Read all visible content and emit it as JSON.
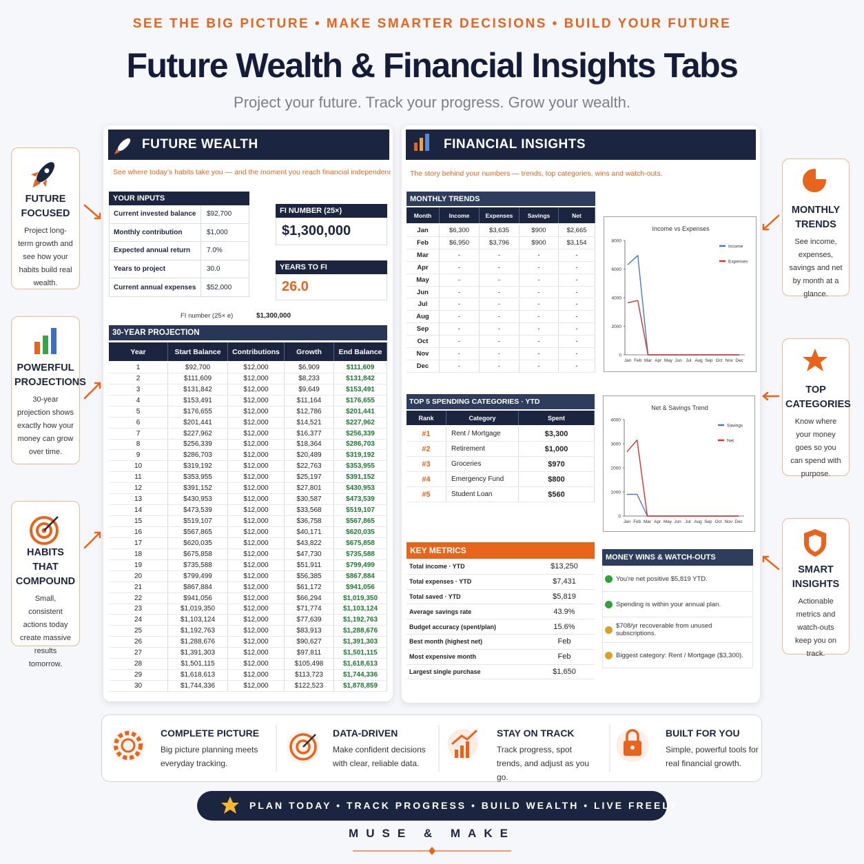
{
  "header": {
    "tagline": "SEE THE BIG PICTURE • MAKE SMARTER DECISIONS • BUILD YOUR FUTURE",
    "title": "Future Wealth & Financial Insights Tabs",
    "subtitle": "Project your future. Track your progress. Grow your wealth."
  },
  "callouts": [
    {
      "title": "FUTURE FOCUSED",
      "text": "Project long-term growth and see how your habits build real wealth."
    },
    {
      "title": "POWERFUL PROJECTIONS",
      "text": "30-year projection shows exactly how your money can grow over time."
    },
    {
      "title": "HABITS THAT COMPOUND",
      "text": "Small, consistent actions today create massive results tomorrow."
    },
    {
      "title": "MONTHLY TRENDS",
      "text": "See income, expenses, savings and net by month at a glance."
    },
    {
      "title": "TOP CATEGORIES",
      "text": "Know where your money goes so you can spend with purpose."
    },
    {
      "title": "SMART INSIGHTS",
      "text": "Actionable metrics and watch-outs keep you on track."
    }
  ],
  "future_wealth": {
    "heading": "FUTURE WEALTH",
    "tagline": "See where today’s habits take you — and the moment you reach financial independence.",
    "inputs": {
      "title": "YOUR INPUTS",
      "rows": [
        [
          "Current invested balance",
          "$92,700"
        ],
        [
          "Monthly contribution",
          "$1,000"
        ],
        [
          "Expected annual return",
          "7.0%"
        ],
        [
          "Years to project",
          "30.0"
        ],
        [
          "Current annual expenses",
          "$52,000"
        ]
      ]
    },
    "fi_number": {
      "label": "FI NUMBER (25×)",
      "value": "$1,300,000"
    },
    "years_to_fi": {
      "label": "YEARS TO FI",
      "value": "26.0"
    },
    "fi_note": {
      "label": "FI number (25× e)",
      "value": "$1,300,000"
    },
    "projection": {
      "title": "30-YEAR PROJECTION",
      "columns": [
        "Year",
        "Start Balance",
        "Contributions",
        "Growth",
        "End Balance"
      ],
      "rows": [
        [
          "1",
          "$92,700",
          "$12,000",
          "$6,909",
          "$111,609"
        ],
        [
          "2",
          "$111,609",
          "$12,000",
          "$8,233",
          "$131,842"
        ],
        [
          "3",
          "$131,842",
          "$12,000",
          "$9,649",
          "$153,491"
        ],
        [
          "4",
          "$153,491",
          "$12,000",
          "$11,164",
          "$176,655"
        ],
        [
          "5",
          "$176,655",
          "$12,000",
          "$12,786",
          "$201,441"
        ],
        [
          "6",
          "$201,441",
          "$12,000",
          "$14,521",
          "$227,962"
        ],
        [
          "7",
          "$227,962",
          "$12,000",
          "$16,377",
          "$256,339"
        ],
        [
          "8",
          "$256,339",
          "$12,000",
          "$18,364",
          "$286,703"
        ],
        [
          "9",
          "$286,703",
          "$12,000",
          "$20,489",
          "$319,192"
        ],
        [
          "10",
          "$319,192",
          "$12,000",
          "$22,763",
          "$353,955"
        ],
        [
          "11",
          "$353,955",
          "$12,000",
          "$25,197",
          "$391,152"
        ],
        [
          "12",
          "$391,152",
          "$12,000",
          "$27,801",
          "$430,953"
        ],
        [
          "13",
          "$430,953",
          "$12,000",
          "$30,587",
          "$473,539"
        ],
        [
          "14",
          "$473,539",
          "$12,000",
          "$33,568",
          "$519,107"
        ],
        [
          "15",
          "$519,107",
          "$12,000",
          "$36,758",
          "$567,865"
        ],
        [
          "16",
          "$567,865",
          "$12,000",
          "$40,171",
          "$620,035"
        ],
        [
          "17",
          "$620,035",
          "$12,000",
          "$43,822",
          "$675,858"
        ],
        [
          "18",
          "$675,858",
          "$12,000",
          "$47,730",
          "$735,588"
        ],
        [
          "19",
          "$735,588",
          "$12,000",
          "$51,911",
          "$799,499"
        ],
        [
          "20",
          "$799,499",
          "$12,000",
          "$56,385",
          "$867,884"
        ],
        [
          "21",
          "$867,884",
          "$12,000",
          "$61,172",
          "$941,056"
        ],
        [
          "22",
          "$941,056",
          "$12,000",
          "$66,294",
          "$1,019,350"
        ],
        [
          "23",
          "$1,019,350",
          "$12,000",
          "$71,774",
          "$1,103,124"
        ],
        [
          "24",
          "$1,103,124",
          "$12,000",
          "$77,639",
          "$1,192,763"
        ],
        [
          "25",
          "$1,192,763",
          "$12,000",
          "$83,913",
          "$1,288,676"
        ],
        [
          "26",
          "$1,288,676",
          "$12,000",
          "$90,627",
          "$1,391,303"
        ],
        [
          "27",
          "$1,391,303",
          "$12,000",
          "$97,811",
          "$1,501,115"
        ],
        [
          "28",
          "$1,501,115",
          "$12,000",
          "$105,498",
          "$1,618,613"
        ],
        [
          "29",
          "$1,618,613",
          "$12,000",
          "$113,723",
          "$1,744,336"
        ],
        [
          "30",
          "$1,744,336",
          "$12,000",
          "$122,523",
          "$1,878,859"
        ]
      ]
    }
  },
  "financial_insights": {
    "heading": "FINANCIAL INSIGHTS",
    "tagline": "The story behind your numbers — trends, top categories, wins and watch-outs.",
    "monthly_trends": {
      "title": "MONTHLY TRENDS",
      "columns": [
        "Month",
        "Income",
        "Expenses",
        "Savings",
        "Net"
      ],
      "rows": [
        [
          "Jan",
          "$6,300",
          "$3,635",
          "$900",
          "$2,665"
        ],
        [
          "Feb",
          "$6,950",
          "$3,796",
          "$900",
          "$3,154"
        ],
        [
          "Mar",
          "-",
          "-",
          "-",
          "-"
        ],
        [
          "Apr",
          "-",
          "-",
          "-",
          "-"
        ],
        [
          "May",
          "-",
          "-",
          "-",
          "-"
        ],
        [
          "Jun",
          "-",
          "-",
          "-",
          "-"
        ],
        [
          "Jul",
          "-",
          "-",
          "-",
          "-"
        ],
        [
          "Aug",
          "-",
          "-",
          "-",
          "-"
        ],
        [
          "Sep",
          "-",
          "-",
          "-",
          "-"
        ],
        [
          "Oct",
          "-",
          "-",
          "-",
          "-"
        ],
        [
          "Nov",
          "-",
          "-",
          "-",
          "-"
        ],
        [
          "Dec",
          "-",
          "-",
          "-",
          "-"
        ]
      ]
    },
    "top_categories": {
      "title": "TOP 5 SPENDING CATEGORIES · YTD",
      "columns": [
        "Rank",
        "Category",
        "Spent"
      ],
      "rows": [
        [
          "#1",
          "Rent / Mortgage",
          "$3,300"
        ],
        [
          "#2",
          "Retirement",
          "$1,000"
        ],
        [
          "#3",
          "Groceries",
          "$970"
        ],
        [
          "#4",
          "Emergency Fund",
          "$800"
        ],
        [
          "#5",
          "Student Loan",
          "$560"
        ]
      ]
    },
    "key_metrics": {
      "title": "KEY METRICS",
      "rows": [
        [
          "Total income · YTD",
          "$13,250"
        ],
        [
          "Total expenses · YTD",
          "$7,431"
        ],
        [
          "Total saved · YTD",
          "$5,819"
        ],
        [
          "Average savings rate",
          "43.9%"
        ],
        [
          "Budget accuracy (spent/plan)",
          "15.6%"
        ],
        [
          "Best month (highest net)",
          "Feb"
        ],
        [
          "Most expensive month",
          "Feb"
        ],
        [
          "Largest single purchase",
          "$1,650"
        ]
      ]
    },
    "wins": {
      "title": "MONEY WINS & WATCH-OUTS",
      "items": [
        "You're net positive $5,819 YTD.",
        "Spending is within your annual plan.",
        "$708/yr recoverable from unused subscriptions.",
        "Biggest category: Rent / Mortgage ($3,300)."
      ]
    }
  },
  "chart_data": [
    {
      "type": "line",
      "title": "Income vs Expenses",
      "categories": [
        "Jan",
        "Feb",
        "Mar",
        "Apr",
        "May",
        "Jun",
        "Jul",
        "Aug",
        "Sep",
        "Oct",
        "Nov",
        "Dec"
      ],
      "series": [
        {
          "name": "Income",
          "color": "#4a78c8",
          "values": [
            6300,
            6950,
            0,
            0,
            0,
            0,
            0,
            0,
            0,
            0,
            0,
            0
          ]
        },
        {
          "name": "Expenses",
          "color": "#d8322e",
          "values": [
            3635,
            3796,
            0,
            0,
            0,
            0,
            0,
            0,
            0,
            0,
            0,
            0
          ]
        }
      ],
      "ylim": [
        0,
        8000
      ],
      "yticks": [
        0,
        2000,
        4000,
        6000,
        8000
      ],
      "grid": false,
      "legend": "upper right"
    },
    {
      "type": "line",
      "title": "Net & Savings Trend",
      "categories": [
        "Jan",
        "Feb",
        "Mar",
        "Apr",
        "May",
        "Jun",
        "Jul",
        "Aug",
        "Sep",
        "Oct",
        "Nov",
        "Dec"
      ],
      "series": [
        {
          "name": "Savings",
          "color": "#4a78c8",
          "values": [
            900,
            900,
            0,
            0,
            0,
            0,
            0,
            0,
            0,
            0,
            0,
            0
          ]
        },
        {
          "name": "Net",
          "color": "#d8322e",
          "values": [
            2665,
            3154,
            0,
            0,
            0,
            0,
            0,
            0,
            0,
            0,
            0,
            0
          ]
        }
      ],
      "ylim": [
        0,
        4000
      ],
      "yticks": [
        0,
        1000,
        2000,
        3000,
        4000
      ],
      "grid": false,
      "legend": "upper right"
    }
  ],
  "features": [
    {
      "title": "COMPLETE PICTURE",
      "text": "Big picture planning meets everyday tracking."
    },
    {
      "title": "DATA-DRIVEN",
      "text": "Make confident decisions with clear, reliable data."
    },
    {
      "title": "STAY ON TRACK",
      "text": "Track progress, spot trends, and adjust as you go."
    },
    {
      "title": "BUILT FOR YOU",
      "text": "Simple, powerful tools for real financial growth."
    }
  ],
  "banner": "PLAN TODAY • TRACK PROGRESS • BUILD WEALTH • LIVE FREELY",
  "brand": "MUSE & MAKE"
}
